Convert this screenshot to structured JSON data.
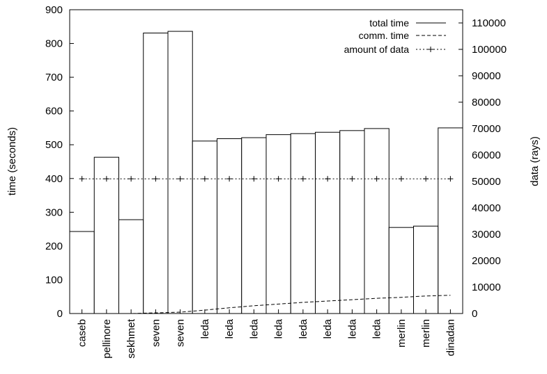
{
  "chart_data": {
    "type": "bar",
    "categories": [
      "caseb",
      "pellinore",
      "sekhmet",
      "seven",
      "seven",
      "leda",
      "leda",
      "leda",
      "leda",
      "leda",
      "leda",
      "leda",
      "leda",
      "merlin",
      "merlin",
      "dinadan"
    ],
    "series": [
      {
        "name": "total time",
        "kind": "bar",
        "axis": "left",
        "values": [
          243,
          463,
          278,
          831,
          836,
          511,
          518,
          521,
          530,
          533,
          537,
          542,
          548,
          255,
          259,
          550
        ]
      },
      {
        "name": "comm. time",
        "kind": "line",
        "style": "dashed",
        "axis": "left",
        "values": [
          0,
          0,
          0,
          2,
          4,
          10,
          17,
          23,
          28,
          33,
          37,
          41,
          45,
          48,
          52,
          54
        ]
      },
      {
        "name": "amount of data",
        "kind": "line",
        "style": "dotted-cross",
        "axis": "right",
        "values": [
          51000,
          51000,
          51000,
          51000,
          51000,
          51000,
          51000,
          51000,
          51000,
          51000,
          51000,
          51000,
          51000,
          51000,
          51000,
          51000
        ]
      }
    ],
    "ylabel": "time (seconds)",
    "y2label": "data (rays)",
    "ylim": [
      0,
      900
    ],
    "y2lim": [
      0,
      115000
    ],
    "yticks": [
      "0",
      "100",
      "200",
      "300",
      "400",
      "500",
      "600",
      "700",
      "800",
      "900"
    ],
    "y2ticks": [
      "0",
      "10000",
      "20000",
      "30000",
      "40000",
      "50000",
      "60000",
      "70000",
      "80000",
      "90000",
      "100000",
      "110000"
    ],
    "legend_position": "top-right",
    "grid": false,
    "colors": {
      "bar_stroke": "#000000",
      "bar_fill": "#ffffff",
      "line": "#000000"
    }
  }
}
